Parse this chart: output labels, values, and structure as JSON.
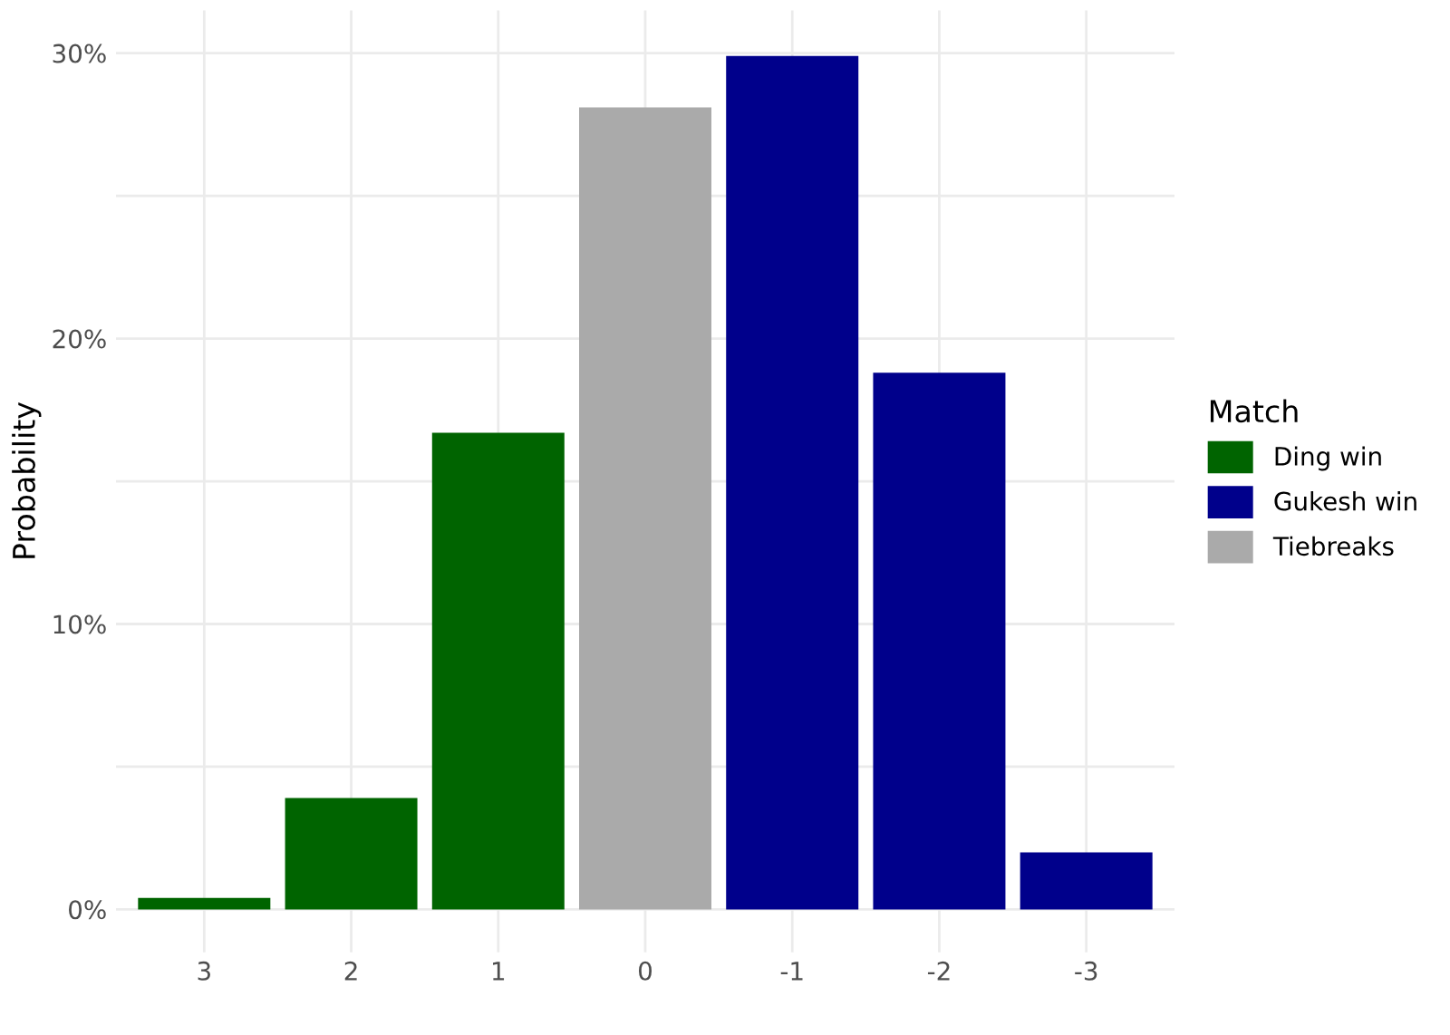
{
  "chart_data": {
    "type": "bar",
    "ylabel": "Probability",
    "legend_title": "Match",
    "legend": "right",
    "categories": [
      "3",
      "2",
      "1",
      "0",
      "-1",
      "-2",
      "-3"
    ],
    "series": [
      {
        "name": "Ding win",
        "color": "#006400",
        "values": [
          0.4,
          3.9,
          16.7,
          null,
          null,
          null,
          null
        ]
      },
      {
        "name": "Gukesh win",
        "color": "#00008b",
        "values": [
          null,
          null,
          null,
          null,
          29.9,
          18.8,
          2.0
        ]
      },
      {
        "name": "Tiebreaks",
        "color": "#aaaaaa",
        "values": [
          null,
          null,
          null,
          28.1,
          null,
          null,
          null
        ]
      }
    ],
    "ylim": [
      -1.5,
      31.5
    ],
    "yticks": [
      {
        "value": 0,
        "label": "0%"
      },
      {
        "value": 5,
        "label": null
      },
      {
        "value": 10,
        "label": "10%"
      },
      {
        "value": 15,
        "label": null
      },
      {
        "value": 20,
        "label": "20%"
      },
      {
        "value": 25,
        "label": null
      },
      {
        "value": 30,
        "label": "30%"
      }
    ],
    "grid": true
  }
}
